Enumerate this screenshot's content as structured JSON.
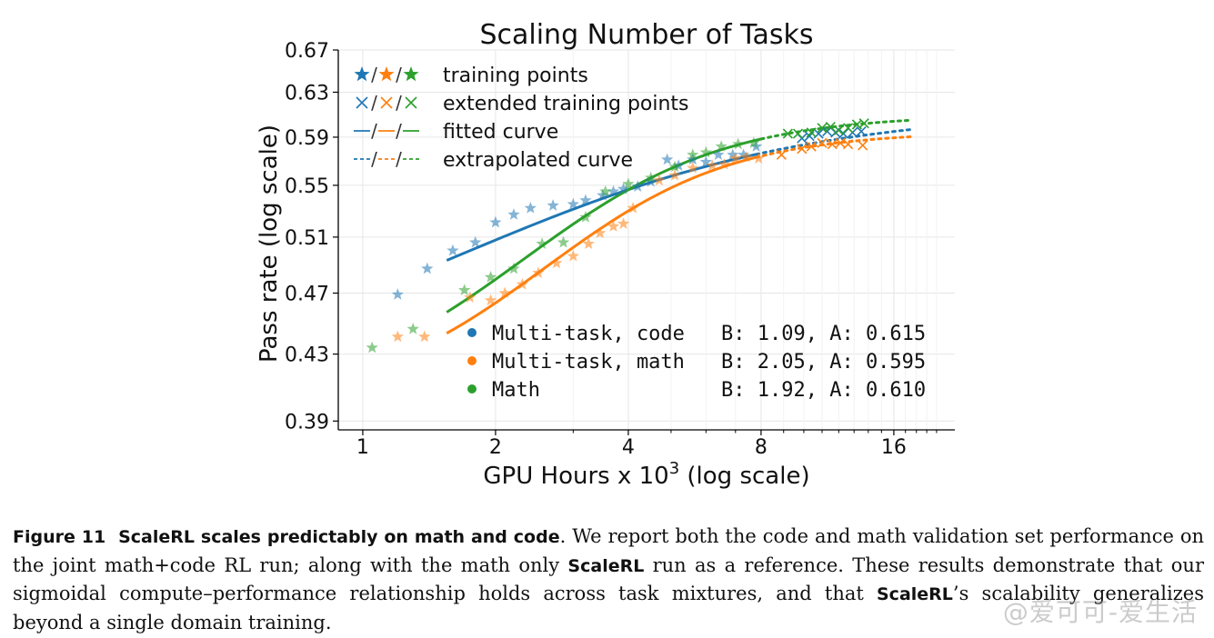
{
  "chart_data": {
    "type": "scatter",
    "title": "Scaling Number of Tasks",
    "xlabel": "GPU Hours x 10",
    "xlabel_sup": "3",
    "xlabel_suffix": " (log scale)",
    "ylabel": "Pass rate (log scale)",
    "x_scale": "log",
    "y_scale": "log",
    "xlim": [
      0.88,
      22
    ],
    "ylim": [
      0.385,
      0.67
    ],
    "x_ticks": [
      1,
      2,
      4,
      8,
      16
    ],
    "x_tick_labels": [
      "1",
      "2",
      "4",
      "8",
      "16"
    ],
    "y_ticks": [
      0.39,
      0.43,
      0.47,
      0.51,
      0.55,
      0.59,
      0.63,
      0.67
    ],
    "y_tick_labels": [
      "0.39",
      "0.43",
      "0.47",
      "0.51",
      "0.55",
      "0.59",
      "0.63",
      "0.67"
    ],
    "grid": true,
    "legend_markers": {
      "position": "top-left",
      "entries": [
        {
          "symbol": "star",
          "label": "training points"
        },
        {
          "symbol": "x",
          "label": "extended training points"
        },
        {
          "symbol": "solid",
          "label": "fitted curve"
        },
        {
          "symbol": "dashed",
          "label": "extrapolated curve"
        }
      ]
    },
    "legend_series": {
      "position": "bottom-right",
      "entries": [
        {
          "name": "Multi-task, code",
          "params": "B: 1.09, A: 0.615"
        },
        {
          "name": "Multi-task, math",
          "params": "B: 2.05, A: 0.595"
        },
        {
          "name": "Math",
          "params": "B: 1.92, A: 0.610"
        }
      ]
    },
    "series": [
      {
        "name": "Multi-task, code",
        "color": "#1f77b4",
        "B": 1.09,
        "A": 0.615,
        "training_points": [
          [
            1.2,
            0.469
          ],
          [
            1.4,
            0.487
          ],
          [
            1.6,
            0.5
          ],
          [
            1.8,
            0.506
          ],
          [
            2.0,
            0.521
          ],
          [
            2.2,
            0.527
          ],
          [
            2.4,
            0.532
          ],
          [
            2.7,
            0.534
          ],
          [
            3.0,
            0.535
          ],
          [
            3.2,
            0.538
          ],
          [
            3.5,
            0.542
          ],
          [
            3.7,
            0.545
          ],
          [
            3.9,
            0.547
          ],
          [
            4.2,
            0.549
          ],
          [
            4.5,
            0.553
          ],
          [
            4.9,
            0.571
          ],
          [
            5.2,
            0.566
          ],
          [
            5.6,
            0.571
          ],
          [
            6.0,
            0.569
          ],
          [
            6.4,
            0.575
          ],
          [
            6.9,
            0.575
          ],
          [
            7.3,
            0.575
          ],
          [
            7.8,
            0.582
          ]
        ],
        "extended_points": [
          [
            9.9,
            0.589
          ],
          [
            10.3,
            0.591
          ],
          [
            10.8,
            0.593
          ],
          [
            11.3,
            0.595
          ],
          [
            11.8,
            0.594
          ],
          [
            12.3,
            0.593
          ],
          [
            12.9,
            0.594
          ],
          [
            13.5,
            0.595
          ]
        ],
        "fit_x": [
          1.55,
          7.8
        ],
        "extrap_x": [
          7.8,
          17.5
        ]
      },
      {
        "name": "Multi-task, math",
        "color": "#ff7f0e",
        "B": 2.05,
        "A": 0.595,
        "training_points": [
          [
            1.2,
            0.441
          ],
          [
            1.38,
            0.441
          ],
          [
            1.75,
            0.467
          ],
          [
            1.95,
            0.465
          ],
          [
            2.1,
            0.47
          ],
          [
            2.3,
            0.476
          ],
          [
            2.5,
            0.484
          ],
          [
            2.75,
            0.491
          ],
          [
            3.0,
            0.496
          ],
          [
            3.25,
            0.505
          ],
          [
            3.45,
            0.513
          ],
          [
            3.7,
            0.518
          ],
          [
            3.9,
            0.52
          ],
          [
            4.1,
            0.532
          ],
          [
            4.7,
            0.554
          ],
          [
            5.1,
            0.558
          ],
          [
            5.6,
            0.564
          ],
          [
            6.2,
            0.566
          ],
          [
            6.6,
            0.567
          ],
          [
            7.0,
            0.572
          ],
          [
            7.4,
            0.573
          ],
          [
            7.9,
            0.572
          ]
        ],
        "extended_points": [
          [
            8.9,
            0.575
          ],
          [
            9.9,
            0.58
          ],
          [
            10.4,
            0.582
          ],
          [
            11.0,
            0.585
          ],
          [
            11.6,
            0.584
          ],
          [
            12.1,
            0.585
          ],
          [
            12.6,
            0.584
          ],
          [
            13.6,
            0.583
          ]
        ],
        "fit_x": [
          1.55,
          7.8
        ],
        "extrap_x": [
          7.8,
          17.5
        ]
      },
      {
        "name": "Math",
        "color": "#2ca02c",
        "B": 1.92,
        "A": 0.61,
        "training_points": [
          [
            1.05,
            0.434
          ],
          [
            1.3,
            0.446
          ],
          [
            1.7,
            0.472
          ],
          [
            1.95,
            0.481
          ],
          [
            2.2,
            0.487
          ],
          [
            2.55,
            0.505
          ],
          [
            2.85,
            0.506
          ],
          [
            3.2,
            0.525
          ],
          [
            3.55,
            0.545
          ],
          [
            4.0,
            0.551
          ],
          [
            4.5,
            0.556
          ],
          [
            5.1,
            0.565
          ],
          [
            5.6,
            0.575
          ],
          [
            6.0,
            0.577
          ],
          [
            6.5,
            0.582
          ],
          [
            7.1,
            0.584
          ],
          [
            7.7,
            0.585
          ]
        ],
        "extended_points": [
          [
            9.2,
            0.593
          ],
          [
            9.7,
            0.593
          ],
          [
            10.4,
            0.594
          ],
          [
            11.0,
            0.598
          ],
          [
            11.5,
            0.599
          ],
          [
            12.0,
            0.596
          ],
          [
            12.6,
            0.598
          ],
          [
            13.2,
            0.601
          ],
          [
            13.7,
            0.602
          ]
        ],
        "fit_x": [
          1.55,
          8.0
        ],
        "extrap_x": [
          8.0,
          17.5
        ]
      }
    ]
  },
  "caption": {
    "label": "Figure 11",
    "title": "ScaleRL scales predictably on math and code",
    "text_1": ". We report both the code and math validation set performance on the joint math+code RL run; along with the math only ",
    "bold_1": "ScaleRL",
    "text_2": " run as a reference. These results demonstrate that our sigmoidal compute–performance relationship holds across task mixtures, and that ",
    "bold_2": "ScaleRL",
    "text_3": "’s scalability generalizes beyond a single domain training."
  },
  "watermark": "@爱可可-爱生活"
}
